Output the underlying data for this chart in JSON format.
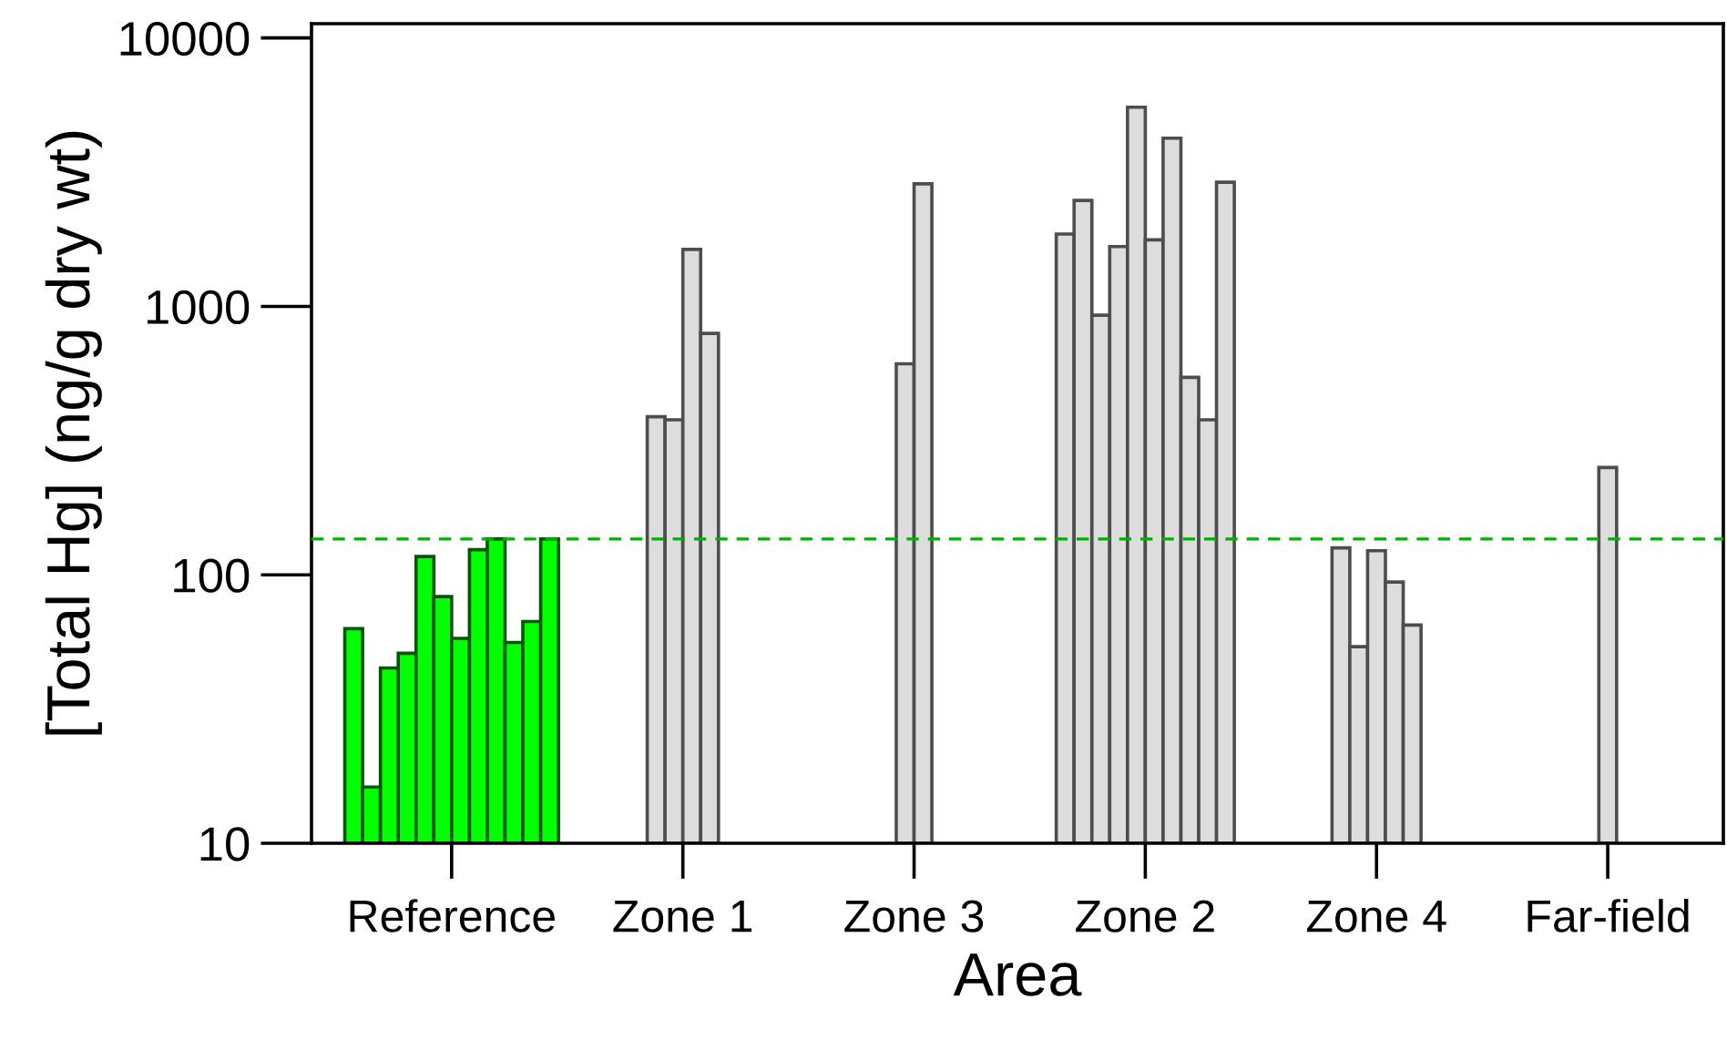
{
  "chart_data": {
    "type": "bar",
    "xlabel": "Area",
    "ylabel": "[Total Hg] (ng/g dry wt)",
    "categories": [
      "Reference",
      "Zone 1",
      "Zone 3",
      "Zone 2",
      "Zone 4",
      "Far-field"
    ],
    "log": "y",
    "ylim": [
      10,
      11300
    ],
    "yticks": [
      10,
      100,
      1000,
      10000
    ],
    "grid": false,
    "legend": false,
    "series": [
      {
        "values": [
          63,
          388,
          611,
          1860,
          126,
          251
        ],
        "colors": [
          "#00ff00",
          "#dddddd",
          "#dddddd",
          "#dddddd",
          "#dddddd",
          "#dddddd"
        ]
      },
      {
        "values": [
          16.2,
          378,
          2860,
          2480,
          54,
          null
        ],
        "colors": [
          "#00ff00",
          "#dddddd",
          "#dddddd",
          "#dddddd",
          "#dddddd",
          "#dddddd"
        ]
      },
      {
        "values": [
          45,
          1630,
          null,
          927,
          123,
          null
        ],
        "colors": [
          "#00ff00",
          "#dddddd",
          "#dddddd",
          "#dddddd",
          "#dddddd",
          "#dddddd"
        ]
      },
      {
        "values": [
          51,
          793,
          null,
          1670,
          94,
          null
        ],
        "colors": [
          "#00ff00",
          "#dddddd",
          "#dddddd",
          "#dddddd",
          "#dddddd",
          "#dddddd"
        ]
      },
      {
        "values": [
          117,
          null,
          null,
          5520,
          65,
          null
        ],
        "colors": [
          "#00ff00",
          "#dddddd",
          "#dddddd",
          "#dddddd",
          "#dddddd",
          "#dddddd"
        ]
      },
      {
        "values": [
          83,
          null,
          null,
          1770,
          null,
          null
        ],
        "colors": [
          "#00ff00",
          "#dddddd",
          "#dddddd",
          "#dddddd",
          "#dddddd",
          "#dddddd"
        ]
      },
      {
        "values": [
          58,
          null,
          null,
          4230,
          null,
          null
        ],
        "colors": [
          "#00ff00",
          "#dddddd",
          "#dddddd",
          "#dddddd",
          "#dddddd",
          "#dddddd"
        ]
      },
      {
        "values": [
          124,
          null,
          null,
          544,
          null,
          null
        ],
        "colors": [
          "#00ff00",
          "#dddddd",
          "#dddddd",
          "#dddddd",
          "#dddddd",
          "#dddddd"
        ]
      },
      {
        "values": [
          136,
          null,
          null,
          378,
          null,
          null
        ],
        "colors": [
          "#00ff00",
          "#dddddd",
          "#dddddd",
          "#dddddd",
          "#dddddd",
          "#dddddd"
        ]
      },
      {
        "values": [
          56,
          null,
          null,
          2900,
          null,
          null
        ],
        "colors": [
          "#00ff00",
          "#dddddd",
          "#dddddd",
          "#dddddd",
          "#dddddd",
          "#dddddd"
        ]
      },
      {
        "values": [
          67,
          null,
          null,
          null,
          null,
          null
        ],
        "colors": [
          "#00ff00",
          "#dddddd",
          "#dddddd",
          "#dddddd",
          "#dddddd",
          "#dddddd"
        ]
      },
      {
        "values": [
          136,
          null,
          null,
          null,
          null,
          null
        ],
        "colors": [
          "#00ff00",
          "#dddddd",
          "#dddddd",
          "#dddddd",
          "#dddddd",
          "#dddddd"
        ]
      }
    ],
    "ref_lines": [
      {
        "axis": "y",
        "value": 136,
        "color": "#00b000",
        "line_style": "dashed"
      }
    ]
  }
}
